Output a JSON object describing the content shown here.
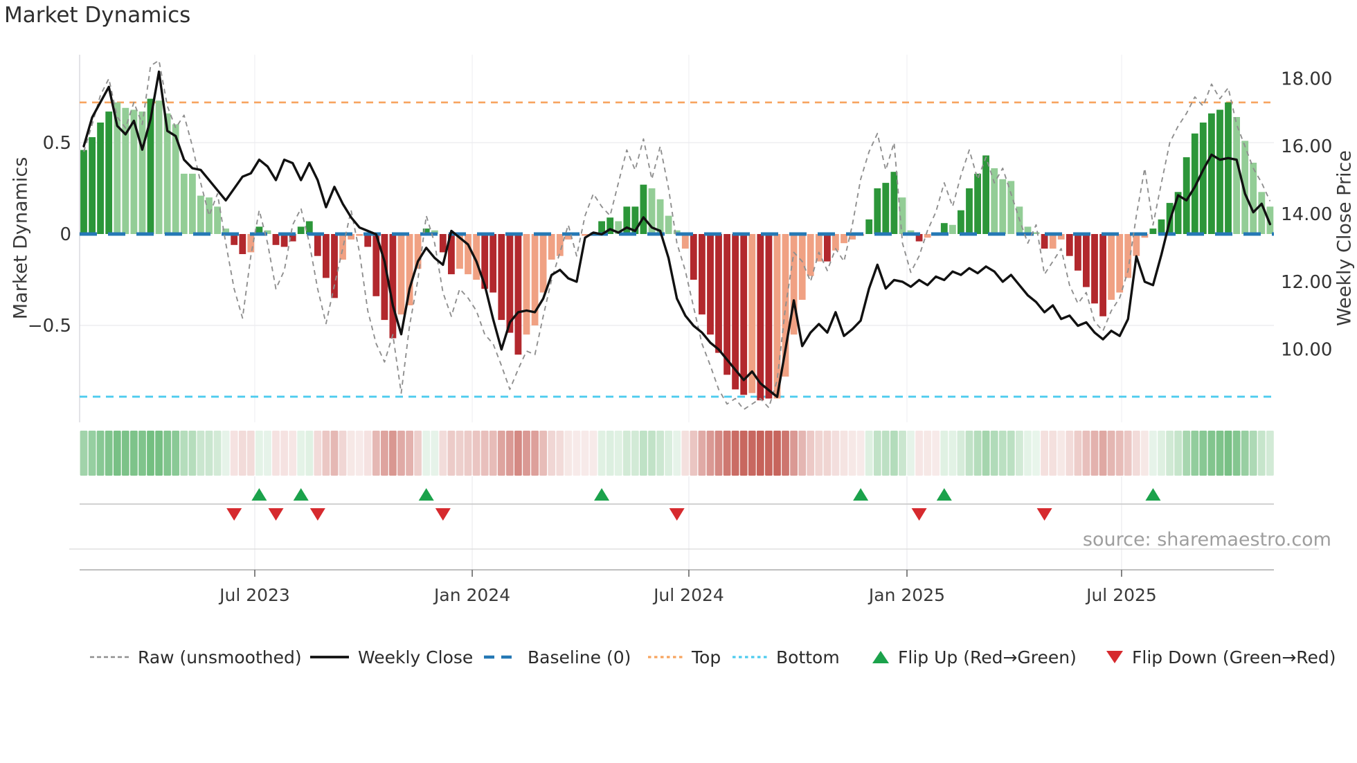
{
  "title": "Market Dynamics",
  "source_credit": "source: sharemaestro.com",
  "chart_data": {
    "type": "combo",
    "title": "Market Dynamics",
    "x_axis": {
      "tick_labels": [
        "Jul 2023",
        "Jan 2024",
        "Jul 2024",
        "Jan 2025",
        "Jul 2025"
      ],
      "tick_weeks": [
        20.47,
        46.5,
        72.43,
        98.54,
        124.23
      ],
      "n_weeks": 143
    },
    "left_axis": {
      "title": "Market Dynamics",
      "tick_labels": [
        "0.5",
        "0",
        "−0.5"
      ],
      "tick_values": [
        0.5,
        0,
        -0.5
      ],
      "range_approx": [
        -1.03,
        0.98
      ]
    },
    "right_axis": {
      "title": "Weekly Close Price",
      "tick_labels": [
        "18.00",
        "16.00",
        "14.00",
        "12.00",
        "10.00"
      ],
      "tick_values": [
        18,
        16,
        14,
        12,
        10
      ],
      "range_approx": [
        7.85,
        18.7
      ]
    },
    "baseline": {
      "value": 0,
      "label": "Baseline (0)",
      "color": "#2578b5"
    },
    "top_line": {
      "value": 0.72,
      "label": "Top",
      "color": "#f7a45f"
    },
    "bottom_line": {
      "value": -0.89,
      "label": "Bottom",
      "color": "#4ccbee"
    },
    "palette": {
      "dark_green": "#2c9639",
      "light_green": "#93cd96",
      "dark_red": "#b2282d",
      "light_red": "#f0a183",
      "flip_up_green": "#1ba24b",
      "flip_down_red": "#d62a2e",
      "raw_gray": "#8f8f8f",
      "price_black": "#111111"
    },
    "series": {
      "oscillator": {
        "name": "Market Dynamics (bars)",
        "values": [
          0.46,
          0.53,
          0.61,
          0.67,
          0.72,
          0.69,
          0.68,
          0.67,
          0.74,
          0.73,
          0.66,
          0.6,
          0.33,
          0.33,
          0.21,
          0.2,
          0.15,
          0.03,
          -0.06,
          -0.11,
          -0.1,
          0.04,
          0.02,
          -0.06,
          -0.07,
          -0.04,
          0.04,
          0.07,
          -0.12,
          -0.24,
          -0.35,
          -0.14,
          -0.03,
          -0.01,
          -0.07,
          -0.34,
          -0.47,
          -0.57,
          -0.44,
          -0.39,
          -0.19,
          0.03,
          0.02,
          -0.1,
          -0.22,
          -0.19,
          -0.22,
          -0.25,
          -0.3,
          -0.32,
          -0.47,
          -0.54,
          -0.66,
          -0.55,
          -0.5,
          -0.32,
          -0.14,
          -0.12,
          -0.03,
          -0.01,
          -0.01,
          -0.01,
          0.07,
          0.09,
          0.07,
          0.15,
          0.15,
          0.27,
          0.25,
          0.19,
          0.1,
          0.02,
          -0.08,
          -0.25,
          -0.44,
          -0.55,
          -0.65,
          -0.77,
          -0.85,
          -0.88,
          -0.87,
          -0.91,
          -0.9,
          -0.9,
          -0.78,
          -0.55,
          -0.36,
          -0.23,
          -0.15,
          -0.15,
          -0.09,
          -0.05,
          -0.03,
          -0.01,
          0.08,
          0.25,
          0.28,
          0.34,
          0.2,
          0.02,
          -0.04,
          -0.02,
          -0.01,
          0.06,
          0.05,
          0.13,
          0.25,
          0.33,
          0.43,
          0.36,
          0.3,
          0.29,
          0.15,
          0.04,
          0.01,
          -0.08,
          -0.08,
          -0.03,
          -0.12,
          -0.2,
          -0.29,
          -0.38,
          -0.45,
          -0.36,
          -0.32,
          -0.24,
          -0.12,
          -0.02,
          0.03,
          0.08,
          0.17,
          0.23,
          0.42,
          0.55,
          0.61,
          0.66,
          0.68,
          0.72,
          0.64,
          0.51,
          0.39,
          0.23,
          0.15
        ],
        "bar_colors": [
          "g",
          "g",
          "g",
          "g",
          "G",
          "G",
          "G",
          "G",
          "g",
          "G",
          "G",
          "G",
          "G",
          "G",
          "G",
          "G",
          "G",
          "G",
          "r",
          "r",
          "R",
          "g",
          "G",
          "r",
          "r",
          "r",
          "g",
          "g",
          "r",
          "r",
          "r",
          "R",
          "R",
          "R",
          "r",
          "r",
          "r",
          "r",
          "R",
          "R",
          "R",
          "g",
          "G",
          "r",
          "r",
          "R",
          "R",
          "R",
          "r",
          "r",
          "r",
          "r",
          "r",
          "R",
          "R",
          "R",
          "R",
          "R",
          "R",
          "R",
          "R",
          "R",
          "g",
          "g",
          "G",
          "g",
          "g",
          "g",
          "G",
          "G",
          "G",
          "G",
          "R",
          "r",
          "r",
          "r",
          "r",
          "r",
          "r",
          "r",
          "R",
          "r",
          "r",
          "R",
          "R",
          "R",
          "R",
          "R",
          "R",
          "r",
          "R",
          "R",
          "R",
          "R",
          "g",
          "g",
          "g",
          "g",
          "G",
          "G",
          "r",
          "R",
          "R",
          "g",
          "G",
          "g",
          "g",
          "g",
          "g",
          "G",
          "G",
          "G",
          "G",
          "G",
          "G",
          "r",
          "R",
          "R",
          "r",
          "r",
          "r",
          "r",
          "r",
          "R",
          "R",
          "R",
          "R",
          "R",
          "g",
          "g",
          "g",
          "g",
          "g",
          "g",
          "g",
          "g",
          "g",
          "g",
          "G",
          "G",
          "G",
          "G",
          "G"
        ]
      },
      "raw": {
        "name": "Raw (unsmoothed)",
        "values": [
          0.45,
          0.6,
          0.76,
          0.85,
          0.64,
          0.58,
          0.72,
          0.6,
          0.92,
          0.95,
          0.7,
          0.58,
          0.65,
          0.48,
          0.28,
          0.1,
          0.22,
          -0.05,
          -0.3,
          -0.46,
          -0.12,
          0.13,
          -0.05,
          -0.3,
          -0.2,
          0.05,
          0.14,
          -0.05,
          -0.3,
          -0.49,
          -0.28,
          -0.08,
          0.13,
          -0.1,
          -0.42,
          -0.6,
          -0.7,
          -0.55,
          -0.87,
          -0.5,
          -0.25,
          0.1,
          -0.05,
          -0.32,
          -0.45,
          -0.3,
          -0.35,
          -0.42,
          -0.55,
          -0.6,
          -0.72,
          -0.85,
          -0.74,
          -0.64,
          -0.66,
          -0.45,
          -0.25,
          -0.1,
          0.05,
          -0.12,
          0.1,
          0.22,
          0.15,
          0.1,
          0.28,
          0.46,
          0.35,
          0.52,
          0.3,
          0.48,
          0.25,
          -0.05,
          -0.2,
          -0.4,
          -0.6,
          -0.72,
          -0.85,
          -0.93,
          -0.9,
          -0.96,
          -0.93,
          -0.9,
          -0.95,
          -0.8,
          -0.4,
          -0.1,
          -0.15,
          -0.26,
          -0.1,
          -0.2,
          -0.08,
          -0.15,
          0.05,
          0.3,
          0.45,
          0.55,
          0.35,
          0.5,
          -0.05,
          -0.21,
          -0.12,
          0.02,
          0.12,
          0.28,
          0.15,
          0.32,
          0.46,
          0.3,
          0.42,
          0.28,
          0.36,
          0.22,
          0.08,
          -0.05,
          0.05,
          -0.22,
          -0.15,
          -0.08,
          -0.28,
          -0.38,
          -0.32,
          -0.48,
          -0.53,
          -0.42,
          -0.35,
          -0.2,
          0.1,
          0.36,
          0.05,
          0.28,
          0.5,
          0.59,
          0.66,
          0.75,
          0.7,
          0.82,
          0.74,
          0.8,
          0.6,
          0.48,
          0.36,
          0.28,
          0.18
        ]
      },
      "price": {
        "name": "Weekly Close",
        "values": [
          16.0,
          16.85,
          17.3,
          17.75,
          16.6,
          16.35,
          16.75,
          15.9,
          16.8,
          18.2,
          16.45,
          16.3,
          15.6,
          15.35,
          15.3,
          15.0,
          14.7,
          14.4,
          14.75,
          15.1,
          15.2,
          15.6,
          15.4,
          15.0,
          15.6,
          15.5,
          15.0,
          15.5,
          15.0,
          14.2,
          14.8,
          14.3,
          13.9,
          13.6,
          13.5,
          13.4,
          12.6,
          11.3,
          10.45,
          11.8,
          12.6,
          13.0,
          12.7,
          12.5,
          13.5,
          13.3,
          13.1,
          12.6,
          11.9,
          10.9,
          10.0,
          10.8,
          11.1,
          11.15,
          11.1,
          11.5,
          12.2,
          12.35,
          12.1,
          12.0,
          13.3,
          13.45,
          13.4,
          13.55,
          13.45,
          13.6,
          13.5,
          13.9,
          13.6,
          13.5,
          12.7,
          11.5,
          11.0,
          10.7,
          10.5,
          10.2,
          10.0,
          9.7,
          9.4,
          9.1,
          9.35,
          9.0,
          8.8,
          8.6,
          10.0,
          11.45,
          10.1,
          10.5,
          10.75,
          10.5,
          11.1,
          10.4,
          10.6,
          10.85,
          11.8,
          12.5,
          11.8,
          12.05,
          12.0,
          11.85,
          12.05,
          11.9,
          12.15,
          12.05,
          12.3,
          12.2,
          12.4,
          12.25,
          12.45,
          12.3,
          12.0,
          12.2,
          11.9,
          11.6,
          11.4,
          11.1,
          11.3,
          10.9,
          11.0,
          10.7,
          10.8,
          10.5,
          10.3,
          10.55,
          10.4,
          10.9,
          12.75,
          12.0,
          11.9,
          12.8,
          13.8,
          14.55,
          14.4,
          14.8,
          15.3,
          15.75,
          15.6,
          15.65,
          15.6,
          14.6,
          14.05,
          14.3,
          13.7
        ]
      }
    },
    "flip_up_weeks": [
      21,
      26,
      41,
      62,
      93,
      103,
      128
    ],
    "flip_down_weeks": [
      18,
      23,
      28,
      43,
      71,
      100,
      115
    ],
    "heatmap": {
      "based_on": "oscillator",
      "green_rgb": [
        50,
        160,
        70
      ],
      "red_rgb": [
        185,
        62,
        52
      ]
    }
  },
  "legend": {
    "items": [
      {
        "label": "Raw (unsmoothed)",
        "type": "dashed-line",
        "color": "#8f8f8f"
      },
      {
        "label": "Weekly Close",
        "type": "solid-line",
        "color": "#111111"
      },
      {
        "label": "Baseline (0)",
        "type": "dashed-line",
        "color": "#2578b5"
      },
      {
        "label": "Top",
        "type": "dotted-line",
        "color": "#f7a45f"
      },
      {
        "label": "Bottom",
        "type": "dotted-line",
        "color": "#4ccbee"
      },
      {
        "label": "Flip Up (Red→Green)",
        "type": "triangle-up",
        "color": "#1ba24b"
      },
      {
        "label": "Flip Down (Green→Red)",
        "type": "triangle-down",
        "color": "#d62a2e"
      }
    ]
  }
}
